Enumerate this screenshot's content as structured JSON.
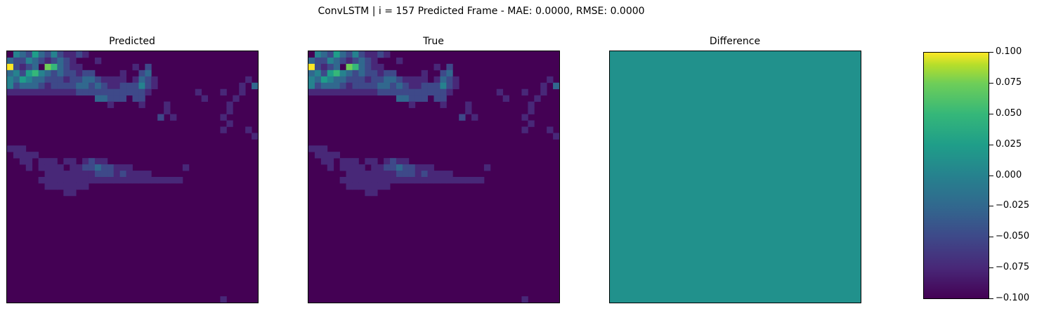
{
  "figure": {
    "title": "ConvLSTM | i = 157 Predicted Frame - MAE: 0.0000, RMSE: 0.0000"
  },
  "panels": {
    "predicted": {
      "title": "Predicted"
    },
    "true": {
      "title": "True"
    },
    "difference": {
      "title": "Difference"
    }
  },
  "colorbar": {
    "ticks": [
      "0.100",
      "0.075",
      "0.050",
      "0.025",
      "0.000",
      "−0.025",
      "−0.050",
      "−0.075",
      "−0.100"
    ],
    "vmin": -0.1,
    "vmax": 0.1
  },
  "colors": {
    "background": "#440154",
    "difference_fill": "#21918c",
    "viridis": [
      "#440154",
      "#482878",
      "#3e4989",
      "#31688e",
      "#26828e",
      "#1f9e89",
      "#35b779",
      "#6ece58",
      "#b5de2b",
      "#fde725"
    ]
  },
  "chart_data": [
    {
      "type": "heatmap",
      "title": "Predicted",
      "grid_size": [
        40,
        40
      ],
      "cells": [
        [
          0,
          1,
          4
        ],
        [
          0,
          2,
          3
        ],
        [
          0,
          3,
          2
        ],
        [
          0,
          4,
          5
        ],
        [
          0,
          5,
          3
        ],
        [
          0,
          6,
          2
        ],
        [
          0,
          7,
          4
        ],
        [
          0,
          8,
          2
        ],
        [
          0,
          9,
          1
        ],
        [
          0,
          10,
          1
        ],
        [
          0,
          11,
          2
        ],
        [
          0,
          12,
          1
        ],
        [
          1,
          0,
          3
        ],
        [
          1,
          1,
          2
        ],
        [
          1,
          2,
          2
        ],
        [
          1,
          3,
          4
        ],
        [
          1,
          4,
          3
        ],
        [
          1,
          5,
          2
        ],
        [
          1,
          6,
          1
        ],
        [
          1,
          7,
          2
        ],
        [
          1,
          8,
          3
        ],
        [
          1,
          9,
          2
        ],
        [
          1,
          10,
          1
        ],
        [
          1,
          14,
          1
        ],
        [
          2,
          0,
          9
        ],
        [
          2,
          1,
          2
        ],
        [
          2,
          2,
          1
        ],
        [
          2,
          3,
          2
        ],
        [
          2,
          4,
          3
        ],
        [
          2,
          6,
          7
        ],
        [
          2,
          7,
          6
        ],
        [
          2,
          8,
          3
        ],
        [
          2,
          9,
          2
        ],
        [
          2,
          10,
          1
        ],
        [
          2,
          11,
          1
        ],
        [
          2,
          20,
          1
        ],
        [
          2,
          22,
          2
        ],
        [
          3,
          0,
          3
        ],
        [
          3,
          1,
          4
        ],
        [
          3,
          2,
          2
        ],
        [
          3,
          3,
          5
        ],
        [
          3,
          4,
          6
        ],
        [
          3,
          5,
          4
        ],
        [
          3,
          6,
          3
        ],
        [
          3,
          7,
          2
        ],
        [
          3,
          8,
          3
        ],
        [
          3,
          9,
          2
        ],
        [
          3,
          10,
          2
        ],
        [
          3,
          11,
          1
        ],
        [
          3,
          12,
          2
        ],
        [
          3,
          13,
          2
        ],
        [
          3,
          18,
          1
        ],
        [
          3,
          21,
          2
        ],
        [
          3,
          22,
          3
        ],
        [
          4,
          0,
          4
        ],
        [
          4,
          1,
          3
        ],
        [
          4,
          2,
          5
        ],
        [
          4,
          3,
          4
        ],
        [
          4,
          4,
          3
        ],
        [
          4,
          5,
          3
        ],
        [
          4,
          6,
          2
        ],
        [
          4,
          7,
          2
        ],
        [
          4,
          8,
          2
        ],
        [
          4,
          9,
          1
        ],
        [
          4,
          10,
          2
        ],
        [
          4,
          11,
          2
        ],
        [
          4,
          12,
          3
        ],
        [
          4,
          13,
          3
        ],
        [
          4,
          14,
          2
        ],
        [
          4,
          15,
          1
        ],
        [
          4,
          16,
          1
        ],
        [
          4,
          17,
          1
        ],
        [
          4,
          18,
          1
        ],
        [
          4,
          20,
          1
        ],
        [
          4,
          21,
          3
        ],
        [
          4,
          22,
          2
        ],
        [
          4,
          23,
          1
        ],
        [
          4,
          38,
          1
        ],
        [
          5,
          0,
          4
        ],
        [
          5,
          1,
          2
        ],
        [
          5,
          2,
          3
        ],
        [
          5,
          3,
          3
        ],
        [
          5,
          4,
          3
        ],
        [
          5,
          5,
          2
        ],
        [
          5,
          6,
          1
        ],
        [
          5,
          7,
          2
        ],
        [
          5,
          8,
          2
        ],
        [
          5,
          9,
          2
        ],
        [
          5,
          10,
          2
        ],
        [
          5,
          11,
          3
        ],
        [
          5,
          12,
          3
        ],
        [
          5,
          13,
          2
        ],
        [
          5,
          14,
          3
        ],
        [
          5,
          15,
          2
        ],
        [
          5,
          16,
          1
        ],
        [
          5,
          17,
          1
        ],
        [
          5,
          18,
          2
        ],
        [
          5,
          19,
          2
        ],
        [
          5,
          20,
          2
        ],
        [
          5,
          21,
          4
        ],
        [
          5,
          22,
          2
        ],
        [
          5,
          23,
          1
        ],
        [
          5,
          37,
          1
        ],
        [
          5,
          39,
          3
        ],
        [
          6,
          0,
          1
        ],
        [
          6,
          1,
          1
        ],
        [
          6,
          2,
          1
        ],
        [
          6,
          3,
          1
        ],
        [
          6,
          4,
          1
        ],
        [
          6,
          5,
          1
        ],
        [
          6,
          6,
          1
        ],
        [
          6,
          7,
          1
        ],
        [
          6,
          8,
          1
        ],
        [
          6,
          9,
          1
        ],
        [
          6,
          10,
          1
        ],
        [
          6,
          11,
          2
        ],
        [
          6,
          12,
          2
        ],
        [
          6,
          13,
          2
        ],
        [
          6,
          14,
          2
        ],
        [
          6,
          15,
          2
        ],
        [
          6,
          16,
          2
        ],
        [
          6,
          17,
          2
        ],
        [
          6,
          18,
          2
        ],
        [
          6,
          19,
          2
        ],
        [
          6,
          20,
          2
        ],
        [
          6,
          21,
          2
        ],
        [
          6,
          22,
          1
        ],
        [
          6,
          30,
          1
        ],
        [
          6,
          34,
          1
        ],
        [
          6,
          37,
          1
        ],
        [
          7,
          14,
          3
        ],
        [
          7,
          15,
          3
        ],
        [
          7,
          16,
          2
        ],
        [
          7,
          17,
          2
        ],
        [
          7,
          18,
          2
        ],
        [
          7,
          20,
          2
        ],
        [
          7,
          21,
          2
        ],
        [
          7,
          31,
          1
        ],
        [
          7,
          36,
          1
        ],
        [
          8,
          16,
          1
        ],
        [
          8,
          21,
          1
        ],
        [
          8,
          25,
          1
        ],
        [
          8,
          35,
          1
        ],
        [
          9,
          25,
          1
        ],
        [
          9,
          35,
          1
        ],
        [
          10,
          24,
          2
        ],
        [
          10,
          26,
          1
        ],
        [
          10,
          34,
          1
        ],
        [
          11,
          35,
          1
        ],
        [
          12,
          34,
          1
        ],
        [
          12,
          38,
          1
        ],
        [
          13,
          39,
          1
        ],
        [
          15,
          0,
          1
        ],
        [
          15,
          1,
          1
        ],
        [
          15,
          2,
          1
        ],
        [
          16,
          1,
          1
        ],
        [
          16,
          2,
          1
        ],
        [
          16,
          3,
          1
        ],
        [
          16,
          4,
          1
        ],
        [
          17,
          2,
          1
        ],
        [
          17,
          3,
          1
        ],
        [
          17,
          5,
          1
        ],
        [
          17,
          6,
          1
        ],
        [
          17,
          7,
          1
        ],
        [
          17,
          9,
          1
        ],
        [
          17,
          10,
          1
        ],
        [
          17,
          12,
          1
        ],
        [
          17,
          13,
          2
        ],
        [
          17,
          14,
          1
        ],
        [
          17,
          15,
          1
        ],
        [
          18,
          3,
          1
        ],
        [
          18,
          5,
          1
        ],
        [
          18,
          6,
          1
        ],
        [
          18,
          7,
          1
        ],
        [
          18,
          8,
          1
        ],
        [
          18,
          10,
          1
        ],
        [
          18,
          11,
          1
        ],
        [
          18,
          12,
          2
        ],
        [
          18,
          13,
          2
        ],
        [
          18,
          14,
          3
        ],
        [
          18,
          15,
          2
        ],
        [
          18,
          16,
          2
        ],
        [
          18,
          17,
          1
        ],
        [
          18,
          18,
          1
        ],
        [
          18,
          19,
          1
        ],
        [
          18,
          28,
          1
        ],
        [
          19,
          6,
          1
        ],
        [
          19,
          7,
          1
        ],
        [
          19,
          8,
          1
        ],
        [
          19,
          9,
          1
        ],
        [
          19,
          10,
          1
        ],
        [
          19,
          11,
          1
        ],
        [
          19,
          12,
          1
        ],
        [
          19,
          13,
          1
        ],
        [
          19,
          14,
          2
        ],
        [
          19,
          15,
          2
        ],
        [
          19,
          16,
          2
        ],
        [
          19,
          17,
          1
        ],
        [
          19,
          18,
          2
        ],
        [
          19,
          19,
          1
        ],
        [
          19,
          20,
          1
        ],
        [
          19,
          21,
          1
        ],
        [
          19,
          22,
          1
        ],
        [
          20,
          5,
          1
        ],
        [
          20,
          6,
          1
        ],
        [
          20,
          7,
          1
        ],
        [
          20,
          8,
          1
        ],
        [
          20,
          9,
          1
        ],
        [
          20,
          10,
          1
        ],
        [
          20,
          11,
          1
        ],
        [
          20,
          12,
          1
        ],
        [
          20,
          13,
          1
        ],
        [
          20,
          14,
          1
        ],
        [
          20,
          15,
          1
        ],
        [
          20,
          16,
          1
        ],
        [
          20,
          17,
          1
        ],
        [
          20,
          18,
          1
        ],
        [
          20,
          19,
          1
        ],
        [
          20,
          20,
          1
        ],
        [
          20,
          21,
          1
        ],
        [
          20,
          22,
          1
        ],
        [
          20,
          23,
          1
        ],
        [
          20,
          24,
          1
        ],
        [
          20,
          25,
          1
        ],
        [
          20,
          26,
          1
        ],
        [
          20,
          27,
          1
        ],
        [
          21,
          6,
          1
        ],
        [
          21,
          7,
          1
        ],
        [
          21,
          8,
          1
        ],
        [
          21,
          9,
          1
        ],
        [
          21,
          10,
          1
        ],
        [
          21,
          11,
          1
        ],
        [
          21,
          12,
          1
        ],
        [
          22,
          9,
          1
        ],
        [
          22,
          10,
          1
        ],
        [
          39,
          34,
          1
        ]
      ]
    },
    {
      "type": "heatmap",
      "title": "True",
      "grid_size": [
        40,
        40
      ],
      "same_as": "Predicted"
    },
    {
      "type": "heatmap",
      "title": "Difference",
      "grid_size": [
        40,
        40
      ],
      "uniform_value": 0.0
    }
  ]
}
